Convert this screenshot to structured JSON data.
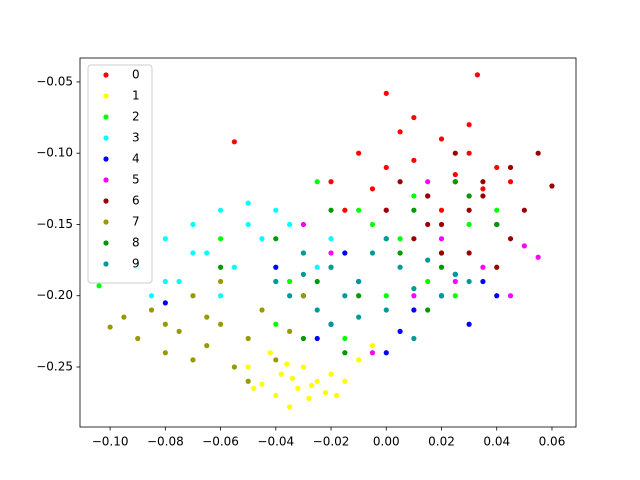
{
  "chart_data": {
    "type": "scatter",
    "xlim": [
      -0.1109,
      0.0687
    ],
    "ylim": [
      -0.2921,
      -0.0332
    ],
    "xticks": [
      {
        "value": -0.1,
        "label": "−0.10"
      },
      {
        "value": -0.08,
        "label": "−0.08"
      },
      {
        "value": -0.06,
        "label": "−0.06"
      },
      {
        "value": -0.04,
        "label": "−0.04"
      },
      {
        "value": -0.02,
        "label": "−0.02"
      },
      {
        "value": 0,
        "label": "0.00"
      },
      {
        "value": 0.02,
        "label": "0.02"
      },
      {
        "value": 0.04,
        "label": "0.04"
      },
      {
        "value": 0.06,
        "label": "0.06"
      }
    ],
    "yticks": [
      {
        "value": -0.05,
        "label": "−0.05"
      },
      {
        "value": -0.1,
        "label": "−0.10"
      },
      {
        "value": -0.15,
        "label": "−0.15"
      },
      {
        "value": -0.2,
        "label": "−0.20"
      },
      {
        "value": -0.25,
        "label": "−0.25"
      }
    ],
    "legend": "upper left",
    "series": [
      {
        "name": "0",
        "color": "#ff0000",
        "x": [
          -0.055,
          -0.02,
          -0.01,
          0.0,
          0.005,
          0.01,
          0.015,
          0.02,
          0.025,
          0.03,
          0.033,
          0.04,
          0.045,
          0.0,
          -0.005,
          0.02,
          0.01,
          0.03,
          -0.015,
          0.035
        ],
        "values": [
          -0.092,
          -0.12,
          -0.1,
          -0.11,
          -0.085,
          -0.105,
          -0.13,
          -0.09,
          -0.115,
          -0.08,
          -0.045,
          -0.11,
          -0.12,
          -0.058,
          -0.125,
          -0.14,
          -0.075,
          -0.1,
          -0.14,
          -0.125
        ]
      },
      {
        "name": "1",
        "color": "#ffff00",
        "x": [
          -0.05,
          -0.045,
          -0.04,
          -0.038,
          -0.035,
          -0.032,
          -0.03,
          -0.028,
          -0.025,
          -0.022,
          -0.02,
          -0.015,
          -0.01,
          -0.042,
          -0.034,
          -0.027,
          -0.018,
          -0.048,
          -0.005,
          -0.036
        ],
        "values": [
          -0.25,
          -0.262,
          -0.27,
          -0.255,
          -0.278,
          -0.265,
          -0.25,
          -0.272,
          -0.26,
          -0.268,
          -0.255,
          -0.26,
          -0.245,
          -0.24,
          -0.258,
          -0.263,
          -0.27,
          -0.265,
          -0.235,
          -0.248
        ]
      },
      {
        "name": "2",
        "color": "#00ff00",
        "x": [
          -0.104,
          -0.06,
          -0.04,
          -0.03,
          -0.02,
          -0.01,
          0.0,
          0.01,
          0.02,
          0.03,
          -0.015,
          0.005,
          0.015,
          -0.025,
          0.04,
          -0.035,
          0.025,
          -0.005
        ],
        "values": [
          -0.193,
          -0.16,
          -0.22,
          -0.15,
          -0.18,
          -0.14,
          -0.2,
          -0.13,
          -0.17,
          -0.15,
          -0.23,
          -0.16,
          -0.19,
          -0.12,
          -0.14,
          -0.19,
          -0.2,
          -0.15
        ]
      },
      {
        "name": "3",
        "color": "#00ffff",
        "x": [
          -0.09,
          -0.085,
          -0.08,
          -0.075,
          -0.07,
          -0.065,
          -0.06,
          -0.055,
          -0.05,
          -0.045,
          -0.04,
          -0.035,
          -0.03,
          -0.025,
          -0.02,
          -0.06,
          -0.07,
          -0.05,
          -0.04,
          -0.08
        ],
        "values": [
          -0.18,
          -0.2,
          -0.16,
          -0.19,
          -0.15,
          -0.17,
          -0.14,
          -0.18,
          -0.135,
          -0.16,
          -0.19,
          -0.15,
          -0.17,
          -0.18,
          -0.16,
          -0.2,
          -0.17,
          -0.15,
          -0.14,
          -0.19
        ]
      },
      {
        "name": "4",
        "color": "#0000ff",
        "x": [
          -0.08,
          -0.04,
          -0.03,
          -0.02,
          -0.01,
          0.0,
          0.01,
          0.02,
          0.03,
          0.035,
          -0.015,
          0.005,
          0.025,
          0.04,
          -0.025
        ],
        "values": [
          -0.205,
          -0.18,
          -0.2,
          -0.22,
          -0.19,
          -0.24,
          -0.21,
          -0.2,
          -0.22,
          -0.19,
          -0.17,
          -0.225,
          -0.185,
          -0.2,
          -0.23
        ]
      },
      {
        "name": "5",
        "color": "#ff00ff",
        "x": [
          -0.03,
          -0.02,
          0.0,
          0.01,
          0.02,
          0.03,
          0.035,
          0.04,
          0.045,
          0.05,
          0.055,
          0.025,
          0.015,
          -0.005
        ],
        "values": [
          -0.15,
          -0.17,
          -0.14,
          -0.2,
          -0.16,
          -0.13,
          -0.18,
          -0.15,
          -0.2,
          -0.165,
          -0.173,
          -0.19,
          -0.12,
          -0.24
        ]
      },
      {
        "name": "6",
        "color": "#990000",
        "x": [
          0.0,
          0.005,
          0.01,
          0.015,
          0.02,
          0.025,
          0.03,
          0.035,
          0.04,
          0.045,
          0.05,
          0.055,
          0.06,
          0.02,
          0.03,
          0.04,
          0.025,
          0.045,
          0.035,
          0.015
        ],
        "values": [
          -0.14,
          -0.12,
          -0.16,
          -0.13,
          -0.15,
          -0.12,
          -0.17,
          -0.13,
          -0.15,
          -0.11,
          -0.14,
          -0.1,
          -0.123,
          -0.17,
          -0.14,
          -0.18,
          -0.1,
          -0.16,
          -0.12,
          -0.15
        ]
      },
      {
        "name": "7",
        "color": "#999900",
        "x": [
          -0.1,
          -0.095,
          -0.09,
          -0.085,
          -0.08,
          -0.075,
          -0.07,
          -0.065,
          -0.06,
          -0.055,
          -0.05,
          -0.045,
          -0.04,
          -0.035,
          -0.03,
          -0.07,
          -0.06,
          -0.08,
          -0.05,
          -0.065
        ],
        "values": [
          -0.222,
          -0.215,
          -0.23,
          -0.21,
          -0.24,
          -0.225,
          -0.2,
          -0.235,
          -0.22,
          -0.25,
          -0.23,
          -0.21,
          -0.245,
          -0.225,
          -0.2,
          -0.245,
          -0.19,
          -0.22,
          -0.26,
          -0.215
        ]
      },
      {
        "name": "8",
        "color": "#009900",
        "x": [
          -0.06,
          -0.04,
          -0.03,
          -0.02,
          -0.01,
          0.0,
          0.01,
          0.02,
          0.03,
          0.04,
          -0.015,
          0.015,
          0.025,
          0.005,
          -0.025
        ],
        "values": [
          -0.18,
          -0.16,
          -0.23,
          -0.14,
          -0.2,
          -0.16,
          -0.14,
          -0.18,
          -0.13,
          -0.15,
          -0.24,
          -0.21,
          -0.12,
          -0.17,
          -0.19
        ]
      },
      {
        "name": "9",
        "color": "#009999",
        "x": [
          -0.04,
          -0.035,
          -0.03,
          -0.025,
          -0.02,
          -0.015,
          -0.01,
          -0.005,
          0.0,
          0.005,
          0.01,
          0.015,
          0.02,
          0.025,
          0.03,
          -0.02,
          0.0,
          -0.01,
          0.01,
          -0.03
        ],
        "values": [
          -0.19,
          -0.2,
          -0.17,
          -0.21,
          -0.18,
          -0.2,
          -0.19,
          -0.17,
          -0.21,
          -0.18,
          -0.195,
          -0.175,
          -0.2,
          -0.185,
          -0.19,
          -0.22,
          -0.16,
          -0.215,
          -0.23,
          -0.185
        ]
      }
    ]
  }
}
